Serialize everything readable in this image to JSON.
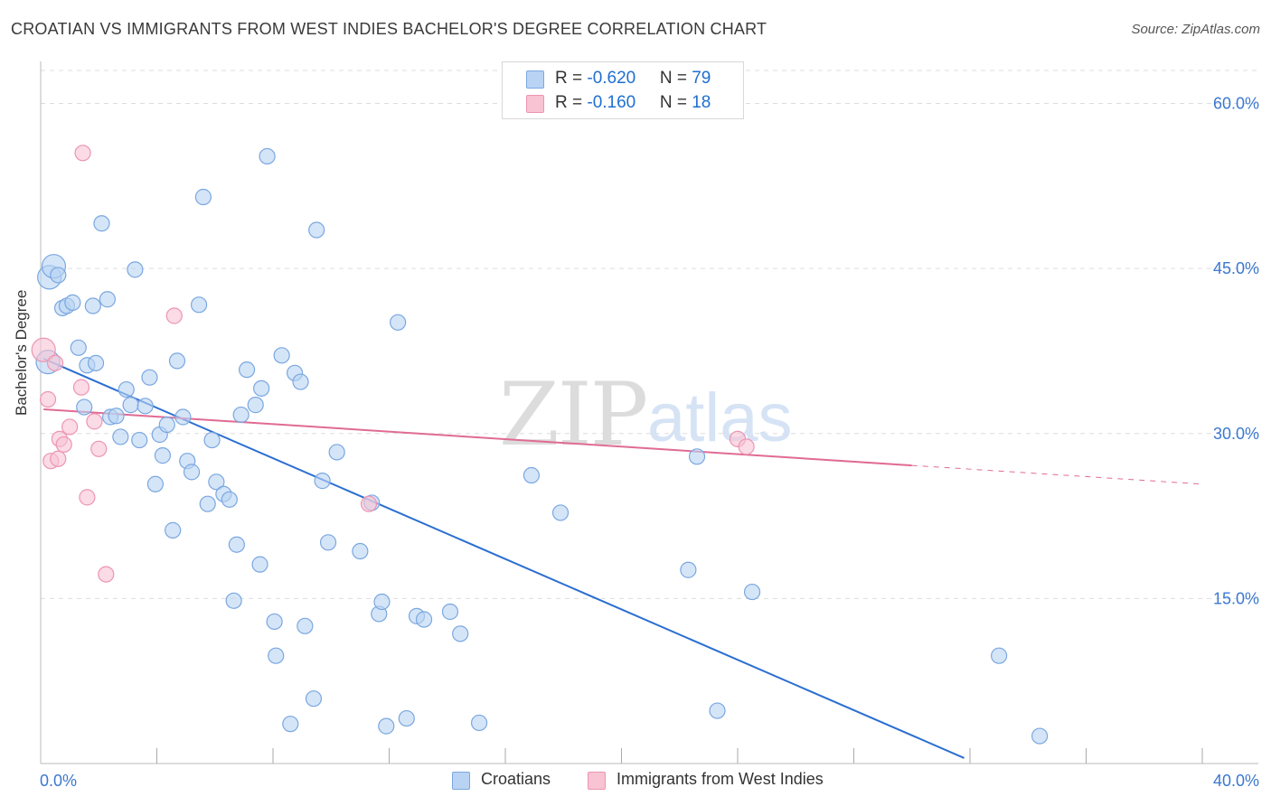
{
  "title": "CROATIAN VS IMMIGRANTS FROM WEST INDIES BACHELOR'S DEGREE CORRELATION CHART",
  "source": "Source: ZipAtlas.com",
  "watermark": {
    "zip": "ZIP",
    "atlas": "atlas"
  },
  "legend": {
    "row1": {
      "r_label": "R = ",
      "r_value": "-0.620",
      "n_label": "N = ",
      "n_value": "79"
    },
    "row2": {
      "r_label": "R = ",
      "r_value": "-0.160",
      "n_label": "N = ",
      "n_value": "18"
    }
  },
  "bottom_legend": {
    "series1": "Croatians",
    "series2": "Immigrants from West Indies"
  },
  "colors": {
    "blue_fill": "#b9d3f4",
    "blue_stroke": "#7aa7e0",
    "blue_line": "#2b6fd1",
    "pink_fill": "#f8c3d3",
    "pink_stroke": "#ec95b2",
    "pink_line": "#e06b94",
    "tick_text": "#3b78d0",
    "grid": "#dddddd"
  },
  "chart_data": {
    "type": "scatter",
    "title": "CROATIAN VS IMMIGRANTS FROM WEST INDIES BACHELOR'S DEGREE CORRELATION CHART",
    "xlabel": "",
    "ylabel": "Bachelor's Degree",
    "xlim": [
      0,
      40
    ],
    "ylim": [
      0,
      63
    ],
    "x_tick_labels": [
      "0.0%",
      "40.0%"
    ],
    "y_ticks": [
      15,
      30,
      45,
      60
    ],
    "y_tick_labels": [
      "15.0%",
      "30.0%",
      "45.0%",
      "60.0%"
    ],
    "grid": true,
    "legend_position": "top-center",
    "series": [
      {
        "name": "Croatians",
        "R": -0.62,
        "N": 79,
        "trend": {
          "x": [
            0.1,
            31.8
          ],
          "y": [
            36.8,
            0.5
          ]
        },
        "points": [
          {
            "x": 0.25,
            "y": 36.5,
            "big": true
          },
          {
            "x": 0.3,
            "y": 44.2,
            "big": true
          },
          {
            "x": 0.45,
            "y": 45.2,
            "big": true
          },
          {
            "x": 0.6,
            "y": 44.4
          },
          {
            "x": 0.75,
            "y": 41.4
          },
          {
            "x": 0.9,
            "y": 41.6
          },
          {
            "x": 1.1,
            "y": 41.9
          },
          {
            "x": 1.3,
            "y": 37.8
          },
          {
            "x": 1.5,
            "y": 32.4
          },
          {
            "x": 1.6,
            "y": 36.2
          },
          {
            "x": 1.8,
            "y": 41.6
          },
          {
            "x": 1.9,
            "y": 36.4
          },
          {
            "x": 2.1,
            "y": 49.1
          },
          {
            "x": 2.3,
            "y": 42.2
          },
          {
            "x": 2.4,
            "y": 31.5
          },
          {
            "x": 2.6,
            "y": 31.6
          },
          {
            "x": 2.75,
            "y": 29.7
          },
          {
            "x": 2.95,
            "y": 34.0
          },
          {
            "x": 3.1,
            "y": 32.6
          },
          {
            "x": 3.25,
            "y": 44.9
          },
          {
            "x": 3.4,
            "y": 29.4
          },
          {
            "x": 3.6,
            "y": 32.5
          },
          {
            "x": 3.75,
            "y": 35.1
          },
          {
            "x": 3.95,
            "y": 25.4
          },
          {
            "x": 4.1,
            "y": 29.9
          },
          {
            "x": 4.2,
            "y": 28.0
          },
          {
            "x": 4.35,
            "y": 30.8
          },
          {
            "x": 4.55,
            "y": 21.2
          },
          {
            "x": 4.7,
            "y": 36.6
          },
          {
            "x": 4.9,
            "y": 31.5
          },
          {
            "x": 5.05,
            "y": 27.5
          },
          {
            "x": 5.2,
            "y": 26.5
          },
          {
            "x": 5.45,
            "y": 41.7
          },
          {
            "x": 5.6,
            "y": 51.5
          },
          {
            "x": 5.75,
            "y": 23.6
          },
          {
            "x": 5.9,
            "y": 29.4
          },
          {
            "x": 6.05,
            "y": 25.6
          },
          {
            "x": 6.3,
            "y": 24.5
          },
          {
            "x": 6.5,
            "y": 24.0
          },
          {
            "x": 6.65,
            "y": 14.8
          },
          {
            "x": 6.75,
            "y": 19.9
          },
          {
            "x": 6.9,
            "y": 31.7
          },
          {
            "x": 7.1,
            "y": 35.8
          },
          {
            "x": 7.4,
            "y": 32.6
          },
          {
            "x": 7.55,
            "y": 18.1
          },
          {
            "x": 7.6,
            "y": 34.1
          },
          {
            "x": 7.8,
            "y": 55.2
          },
          {
            "x": 8.05,
            "y": 12.9
          },
          {
            "x": 8.1,
            "y": 9.8
          },
          {
            "x": 8.3,
            "y": 37.1
          },
          {
            "x": 8.6,
            "y": 3.6
          },
          {
            "x": 8.75,
            "y": 35.5
          },
          {
            "x": 8.95,
            "y": 34.7
          },
          {
            "x": 9.1,
            "y": 12.5
          },
          {
            "x": 9.4,
            "y": 5.9
          },
          {
            "x": 9.5,
            "y": 48.5
          },
          {
            "x": 9.7,
            "y": 25.7
          },
          {
            "x": 9.9,
            "y": 20.1
          },
          {
            "x": 10.2,
            "y": 28.3
          },
          {
            "x": 11.0,
            "y": 19.3
          },
          {
            "x": 11.4,
            "y": 23.7
          },
          {
            "x": 11.65,
            "y": 13.6
          },
          {
            "x": 11.75,
            "y": 14.7
          },
          {
            "x": 11.9,
            "y": 3.4
          },
          {
            "x": 12.3,
            "y": 40.1
          },
          {
            "x": 12.6,
            "y": 4.1
          },
          {
            "x": 12.95,
            "y": 13.4
          },
          {
            "x": 13.2,
            "y": 13.1
          },
          {
            "x": 14.1,
            "y": 13.8
          },
          {
            "x": 14.45,
            "y": 11.8
          },
          {
            "x": 15.1,
            "y": 3.7
          },
          {
            "x": 16.9,
            "y": 26.2
          },
          {
            "x": 17.9,
            "y": 22.8
          },
          {
            "x": 22.3,
            "y": 17.6
          },
          {
            "x": 22.6,
            "y": 27.9
          },
          {
            "x": 23.3,
            "y": 4.8
          },
          {
            "x": 24.5,
            "y": 15.6
          },
          {
            "x": 33.0,
            "y": 9.8
          },
          {
            "x": 34.4,
            "y": 2.5
          }
        ]
      },
      {
        "name": "Immigrants from West Indies",
        "R": -0.16,
        "N": 18,
        "trend": {
          "x": [
            0.1,
            30.0
          ],
          "y": [
            32.2,
            27.1
          ]
        },
        "trend_dashed": {
          "x": [
            30.0,
            40.0
          ],
          "y": [
            27.1,
            25.4
          ]
        },
        "points": [
          {
            "x": 0.1,
            "y": 37.6,
            "big": true
          },
          {
            "x": 0.25,
            "y": 33.1
          },
          {
            "x": 0.35,
            "y": 27.5
          },
          {
            "x": 0.5,
            "y": 36.4
          },
          {
            "x": 0.6,
            "y": 27.7
          },
          {
            "x": 0.65,
            "y": 29.5
          },
          {
            "x": 0.8,
            "y": 29.0
          },
          {
            "x": 1.0,
            "y": 30.6
          },
          {
            "x": 1.4,
            "y": 34.2
          },
          {
            "x": 1.45,
            "y": 55.5
          },
          {
            "x": 1.6,
            "y": 24.2
          },
          {
            "x": 1.85,
            "y": 31.1
          },
          {
            "x": 2.0,
            "y": 28.6
          },
          {
            "x": 2.25,
            "y": 17.2
          },
          {
            "x": 4.6,
            "y": 40.7
          },
          {
            "x": 11.3,
            "y": 23.6
          },
          {
            "x": 24.0,
            "y": 29.5
          },
          {
            "x": 24.3,
            "y": 28.8
          }
        ]
      }
    ]
  }
}
